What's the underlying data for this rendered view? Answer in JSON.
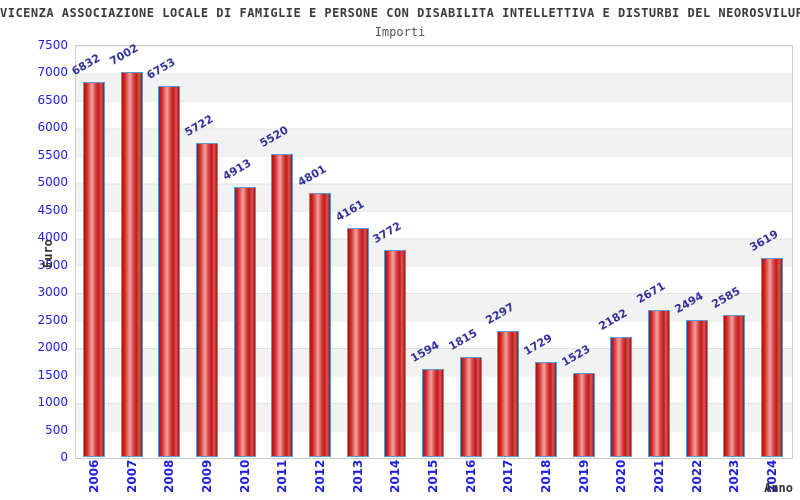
{
  "title": "VICENZA ASSOCIAZIONE LOCALE DI FAMIGLIE E PERSONE CON DISABILITA INTELLETTIVA E DISTURBI DEL NEOROSVILUPPO APS (c.f",
  "subtitle": "Importi",
  "chart_data": {
    "type": "bar",
    "title": "Importi",
    "xlabel": "Anno",
    "ylabel": "Euro",
    "categories": [
      "2006",
      "2007",
      "2008",
      "2009",
      "2010",
      "2011",
      "2012",
      "2013",
      "2014",
      "2015",
      "2016",
      "2017",
      "2018",
      "2019",
      "2020",
      "2021",
      "2022",
      "2023",
      "2024"
    ],
    "values": [
      6832,
      7002,
      6753,
      5722,
      4913,
      5520,
      4801,
      4161,
      3772,
      1594,
      1815,
      2297,
      1729,
      1523,
      2182,
      2671,
      2494,
      2585,
      3619
    ],
    "ylim": [
      0,
      7500
    ],
    "ytick_step": 500,
    "grid": "horizontal-bands-alternating",
    "legend": "none",
    "colors": {
      "bar_fill_dark": "#a81010",
      "bar_fill_light": "#f4a2a2",
      "bar_border": "#5b9bd5",
      "tick_label": "#2222dd",
      "value_label": "#333399",
      "band_gray": "#f2f2f2",
      "band_white": "#ffffff",
      "plot_border": "#cccccc"
    }
  }
}
